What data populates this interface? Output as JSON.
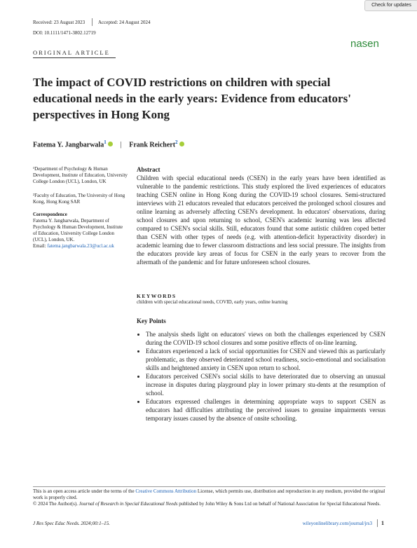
{
  "header": {
    "check_updates": "Check for updates",
    "received": "Received: 23 August 2023",
    "accepted": "Accepted: 24 August 2024",
    "doi": "DOI: 10.1111/1471-3802.12719",
    "section": "ORIGINAL ARTICLE",
    "logo": "nasen"
  },
  "title": "The impact of COVID restrictions on children with special educational needs in the early years: Evidence from educators' perspectives in Hong Kong",
  "authors": [
    {
      "name": "Fatema Y. Jangbarwala",
      "sup": "1"
    },
    {
      "name": "Frank Reichert",
      "sup": "2"
    }
  ],
  "author_separator": "|",
  "affiliations": [
    "¹Department of Psychology & Human Development, Institute of Education, University College London (UCL), London, UK",
    "²Faculty of Education, The University of Hong Kong, Hong Kong SAR"
  ],
  "correspondence": {
    "heading": "Correspondence",
    "text": "Fatema Y. Jangbarwala, Department of Psychology & Human Development, Institute of Education, University College London (UCL), London, UK.",
    "email_label": "Email:",
    "email": "fatema.jangbarwala.23@ucl.ac.uk"
  },
  "abstract": {
    "heading": "Abstract",
    "text": "Children with special educational needs (CSEN) in the early years have been identified as vulnerable to the pandemic restrictions. This study explored the lived experiences of educators teaching CSEN online in Hong Kong during the COVID-19 school closures. Semi-structured interviews with 21 educators revealed that educators perceived the prolonged school closures and online learning as adversely affecting CSEN's development. In educators' observations, during school closures and upon returning to school, CSEN's academic learning was less affected compared to CSEN's social skills. Still, educators found that some autistic children coped better than CSEN with other types of needs (e.g. with attention-deficit hyperactivity disorder) in academic learning due to fewer classroom distractions and less social pressure. The insights from the educators provide key areas of focus for CSEN in the early years to recover from the aftermath of the pandemic and for future unforeseen school closures."
  },
  "keywords": {
    "heading": "KEYWORDS",
    "text": "children with special educational needs, COVID, early years, online learning"
  },
  "key_points": {
    "heading": "Key Points",
    "items": [
      "The analysis sheds light on educators' views on both the challenges experienced by CSEN during the COVID-19 school closures and some positive effects of on-line learning.",
      "Educators experienced a lack of social opportunities for CSEN and viewed this as particularly problematic, as they observed deteriorated school readiness, socio-emotional and socialisation skills and heightened anxiety in CSEN upon return to school.",
      "Educators perceived CSEN's social skills to have deteriorated due to observing an unusual increase in disputes during playground play in lower primary stu-dents at the resumption of school.",
      "Educators expressed challenges in determining appropriate ways to support CSEN as educators had difficulties attributing the perceived issues to genuine impairments versus temporary issues caused by the absence of onsite schooling."
    ]
  },
  "footer": {
    "license_before": "This is an open access article under the terms of the",
    "license_link": "Creative Commons Attribution",
    "license_after": "License, which permits use, distribution and reproduction in any medium, provided the original work is properly cited.",
    "copyright_before": "© 2024 The Author(s).",
    "copyright_journal": "Journal of Research in Special Educational Needs",
    "copyright_after": "published by John Wiley & Sons Ltd on behalf of National Association for Special Educational Needs.",
    "citation": "J Res Spec Educ Needs. 2024;00:1–15.",
    "url": "wileyonlinelibrary.com/journal/jrs3",
    "page": "1"
  }
}
